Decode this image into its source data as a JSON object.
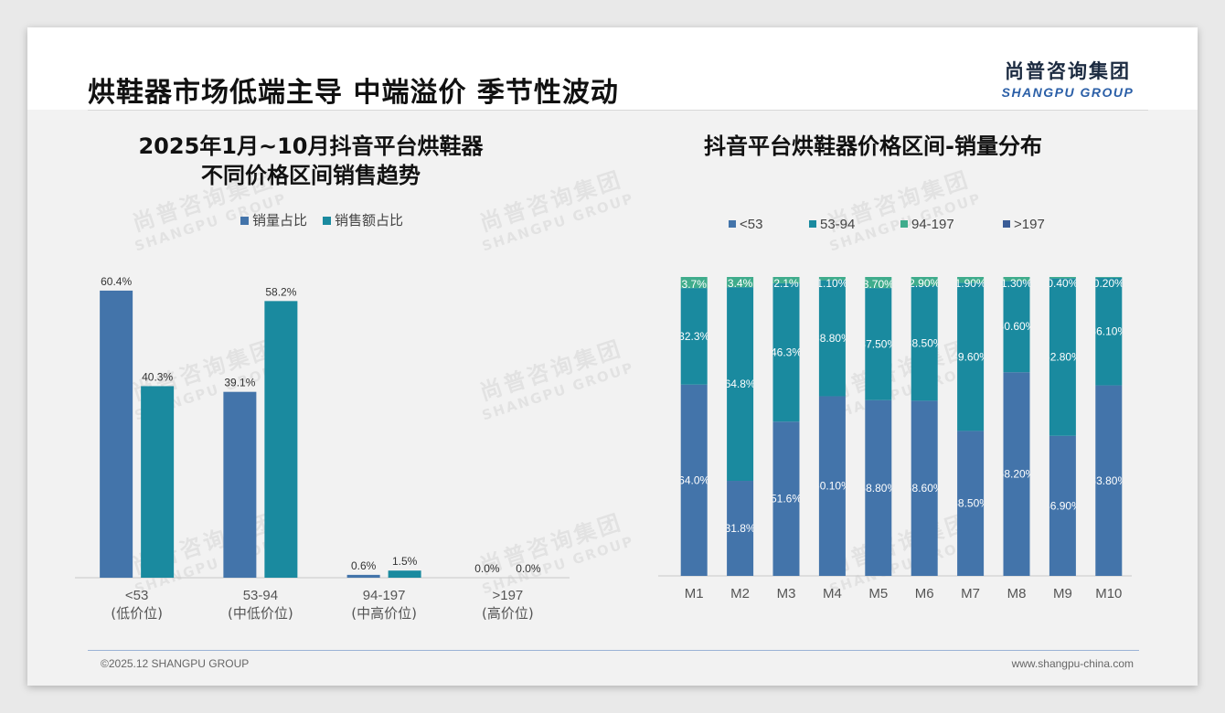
{
  "header": {
    "title": "烘鞋器市场低端主导 中端溢价 季节性波动",
    "logo_cn": "尚普咨询集团",
    "logo_en": "SHANGPU GROUP"
  },
  "footer": {
    "copyright": "©2025.12 SHANGPU GROUP",
    "website": "www.shangpu-china.com"
  },
  "colors": {
    "blue": "#4374aa",
    "teal": "#1a8a9f",
    "green": "#3fac8c",
    "navy": "#3a5c96"
  },
  "chart_data": [
    {
      "type": "bar",
      "title_line1": "2025年1月~10月抖音平台烘鞋器",
      "title_line2": "不同价格区间销售趋势",
      "categories": [
        "<53",
        "53-94",
        "94-197",
        ">197"
      ],
      "category_sublabels": [
        "(低价位)",
        "(中低价位)",
        "(中高价位)",
        "(高价位)"
      ],
      "series": [
        {
          "name": "销量占比",
          "values": [
            60.4,
            39.1,
            0.6,
            0.0
          ],
          "labels": [
            "60.4%",
            "39.1%",
            "0.6%",
            "0.0%"
          ]
        },
        {
          "name": "销售额占比",
          "values": [
            40.3,
            58.2,
            1.5,
            0.0
          ],
          "labels": [
            "40.3%",
            "58.2%",
            "1.5%",
            "0.0%"
          ]
        }
      ],
      "ylim": [
        0,
        100
      ],
      "legend": "top-center",
      "grid": false
    },
    {
      "type": "bar",
      "stacked": true,
      "title": "抖音平台烘鞋器价格区间-销量分布",
      "categories": [
        "M1",
        "M2",
        "M3",
        "M4",
        "M5",
        "M6",
        "M7",
        "M8",
        "M9",
        "M10"
      ],
      "series": [
        {
          "name": "<53",
          "values": [
            64.0,
            31.8,
            51.6,
            60.1,
            58.8,
            58.6,
            48.5,
            68.2,
            46.9,
            63.8
          ],
          "labels": [
            "64.0%",
            "31.8%",
            "51.6%",
            "60.10%",
            "58.80%",
            "58.60%",
            "48.50%",
            "68.20%",
            "46.90%",
            "63.80%"
          ]
        },
        {
          "name": "53-94",
          "values": [
            32.3,
            64.8,
            46.3,
            38.8,
            37.5,
            38.5,
            49.6,
            30.6,
            52.8,
            36.1
          ],
          "labels": [
            "32.3%",
            "64.8%",
            "46.3%",
            "38.80%",
            "37.50%",
            "38.50%",
            "49.60%",
            "30.60%",
            "52.80%",
            "36.10%"
          ]
        },
        {
          "name": "94-197",
          "values": [
            3.7,
            3.4,
            2.1,
            1.1,
            3.7,
            2.9,
            1.9,
            1.3,
            0.4,
            0.2
          ],
          "labels": [
            "3.7%",
            "3.4%",
            "2.1%",
            "1.10%",
            "3.70%",
            "2.90%",
            "1.90%",
            "1.30%",
            "0.40%",
            "0.20%"
          ]
        },
        {
          "name": ">197",
          "values": [
            0,
            0,
            0,
            0,
            0,
            0,
            0,
            0,
            0,
            0
          ],
          "labels": [
            "",
            "",
            "",
            "",
            "",
            "",
            "",
            "",
            "",
            ""
          ]
        }
      ],
      "ylim": [
        0,
        100
      ],
      "legend": "top-center",
      "grid": false
    }
  ]
}
